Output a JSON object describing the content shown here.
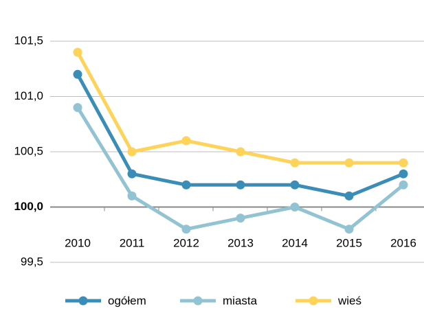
{
  "chart_data": {
    "type": "line",
    "categories": [
      "2010",
      "2011",
      "2012",
      "2013",
      "2014",
      "2015",
      "2016"
    ],
    "series": [
      {
        "name": "ogółem",
        "color": "#3a8db6",
        "values": [
          101.2,
          100.3,
          100.2,
          100.2,
          100.2,
          100.1,
          100.3
        ]
      },
      {
        "name": "miasta",
        "color": "#92c3d3",
        "values": [
          100.9,
          100.1,
          99.8,
          99.9,
          100.0,
          99.8,
          100.2
        ]
      },
      {
        "name": "wieś",
        "color": "#fdd35a",
        "values": [
          101.4,
          100.5,
          100.6,
          100.5,
          100.4,
          100.4,
          100.4
        ]
      }
    ],
    "ylim": [
      99.5,
      101.5
    ],
    "yticks": [
      {
        "value": 99.5,
        "label": "99,5"
      },
      {
        "value": 100,
        "label": "100,0"
      },
      {
        "value": 100.5,
        "label": "100,5"
      },
      {
        "value": 101,
        "label": "101,0"
      },
      {
        "value": 101.5,
        "label": "101,5"
      }
    ],
    "baseline": 100,
    "grid": true,
    "legend": "bottom"
  }
}
